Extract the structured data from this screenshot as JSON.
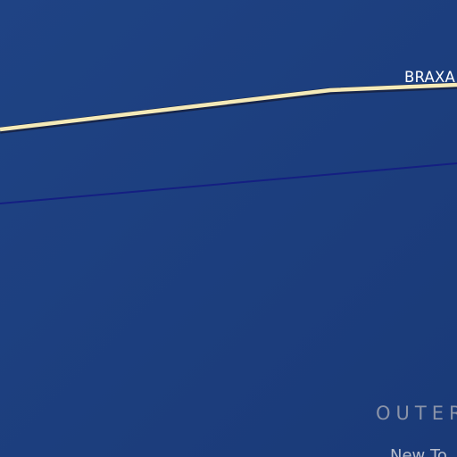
{
  "map": {
    "colors": {
      "background_top": "#1f4384",
      "background_bottom": "#1a3a78",
      "main_road": "#f5eab8",
      "main_road_casing": "#17254a",
      "minor_road": "#141f82"
    },
    "labels": {
      "road_name": "BRAXA",
      "district_name": "OUTER",
      "place_name": "New To"
    }
  }
}
